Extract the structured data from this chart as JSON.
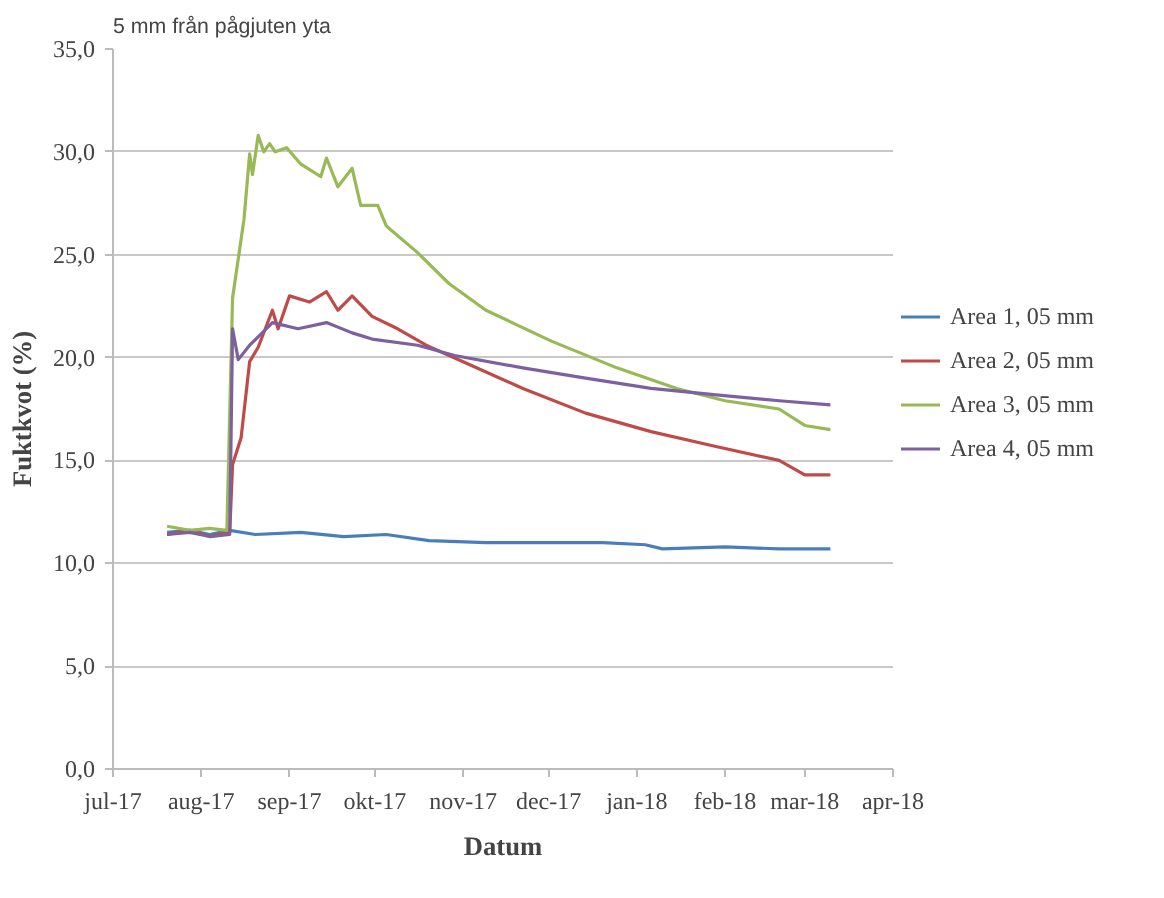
{
  "chart_data": {
    "type": "line",
    "title": "5 mm från pågjuten yta",
    "xlabel": "Datum",
    "ylabel": "Fuktkvot (%)",
    "xlim": [
      "2017-07-01",
      "2018-04-01"
    ],
    "xticks": [
      {
        "value": "2017-07-01",
        "label": "jul-17"
      },
      {
        "value": "2017-08-01",
        "label": "aug-17"
      },
      {
        "value": "2017-09-01",
        "label": "sep-17"
      },
      {
        "value": "2017-10-01",
        "label": "okt-17"
      },
      {
        "value": "2017-11-01",
        "label": "nov-17"
      },
      {
        "value": "2017-12-01",
        "label": "dec-17"
      },
      {
        "value": "2018-01-01",
        "label": "jan-18"
      },
      {
        "value": "2018-02-01",
        "label": "feb-18"
      },
      {
        "value": "2018-03-01",
        "label": "mar-18"
      },
      {
        "value": "2018-04-01",
        "label": "apr-18"
      }
    ],
    "ylim": [
      0,
      35
    ],
    "yticks": [
      {
        "value": 0,
        "label": "0,0"
      },
      {
        "value": 5,
        "label": "5,0"
      },
      {
        "value": 10,
        "label": "10,0"
      },
      {
        "value": 15,
        "label": "15,0"
      },
      {
        "value": 20,
        "label": "20,0"
      },
      {
        "value": 25,
        "label": "25,0"
      },
      {
        "value": 30,
        "label": "30,0"
      },
      {
        "value": 35,
        "label": "35,0"
      }
    ],
    "grid": "y",
    "legend": "right",
    "marker": "none",
    "line_style": "solid",
    "series": [
      {
        "name": "Area 1, 05 mm",
        "color": "#4a7ebb",
        "x": [
          "2017-07-20",
          "2017-07-28",
          "2017-08-04",
          "2017-08-11",
          "2017-08-20",
          "2017-09-05",
          "2017-09-20",
          "2017-10-05",
          "2017-10-20",
          "2017-11-09",
          "2017-12-01",
          "2017-12-20",
          "2018-01-04",
          "2018-01-10",
          "2018-02-01",
          "2018-02-20",
          "2018-03-10"
        ],
        "values": [
          11.5,
          11.6,
          11.4,
          11.6,
          11.4,
          11.5,
          11.3,
          11.4,
          11.1,
          11.0,
          11.0,
          11.0,
          10.9,
          10.7,
          10.8,
          10.7,
          10.7
        ]
      },
      {
        "name": "Area 2, 05 mm",
        "color": "#be4b48",
        "x": [
          "2017-07-20",
          "2017-07-28",
          "2017-08-04",
          "2017-08-11",
          "2017-08-12",
          "2017-08-15",
          "2017-08-18",
          "2017-08-21",
          "2017-08-26",
          "2017-08-28",
          "2017-09-01",
          "2017-09-08",
          "2017-09-14",
          "2017-09-18",
          "2017-09-23",
          "2017-09-30",
          "2017-10-09",
          "2017-10-19",
          "2017-11-01",
          "2017-11-22",
          "2017-12-14",
          "2018-01-06",
          "2018-01-28",
          "2018-02-20",
          "2018-03-01",
          "2018-03-10"
        ],
        "values": [
          11.4,
          11.6,
          11.3,
          11.5,
          14.8,
          16.1,
          19.8,
          20.5,
          22.3,
          21.4,
          23.0,
          22.7,
          23.2,
          22.3,
          23.0,
          22.0,
          21.4,
          20.6,
          19.8,
          18.5,
          17.3,
          16.4,
          15.7,
          15.0,
          14.3,
          14.3
        ]
      },
      {
        "name": "Area 3, 05 mm",
        "color": "#98b954",
        "x": [
          "2017-07-20",
          "2017-07-28",
          "2017-08-04",
          "2017-08-10",
          "2017-08-12",
          "2017-08-16",
          "2017-08-18",
          "2017-08-19",
          "2017-08-21",
          "2017-08-23",
          "2017-08-25",
          "2017-08-27",
          "2017-08-31",
          "2017-09-05",
          "2017-09-12",
          "2017-09-14",
          "2017-09-18",
          "2017-09-23",
          "2017-09-26",
          "2017-10-02",
          "2017-10-05",
          "2017-10-16",
          "2017-10-27",
          "2017-11-09",
          "2017-12-02",
          "2017-12-25",
          "2018-01-15",
          "2018-02-01",
          "2018-02-20",
          "2018-03-01",
          "2018-03-10"
        ],
        "values": [
          11.8,
          11.6,
          11.7,
          11.6,
          22.9,
          26.7,
          29.9,
          28.9,
          30.8,
          30.0,
          30.4,
          30.0,
          30.2,
          29.4,
          28.8,
          29.7,
          28.3,
          29.2,
          27.4,
          27.4,
          26.4,
          25.1,
          23.6,
          22.3,
          20.8,
          19.5,
          18.5,
          17.9,
          17.5,
          16.7,
          16.5
        ]
      },
      {
        "name": "Area 4, 05 mm",
        "color": "#7d60a0",
        "x": [
          "2017-07-20",
          "2017-07-28",
          "2017-08-04",
          "2017-08-11",
          "2017-08-12",
          "2017-08-14",
          "2017-08-18",
          "2017-08-26",
          "2017-09-04",
          "2017-09-14",
          "2017-09-23",
          "2017-09-30",
          "2017-10-16",
          "2017-10-29",
          "2017-11-22",
          "2017-12-14",
          "2018-01-06",
          "2018-01-28",
          "2018-02-20",
          "2018-03-10"
        ],
        "values": [
          11.4,
          11.5,
          11.3,
          11.4,
          21.4,
          19.9,
          20.6,
          21.7,
          21.4,
          21.7,
          21.2,
          20.9,
          20.6,
          20.1,
          19.5,
          19.0,
          18.5,
          18.2,
          17.9,
          17.7
        ]
      }
    ]
  }
}
